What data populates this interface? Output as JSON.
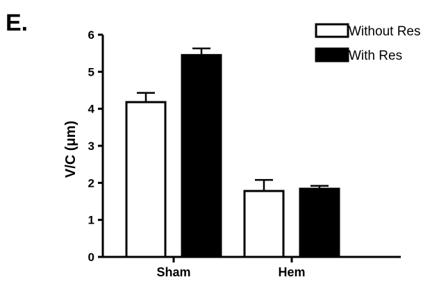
{
  "panel_label": "E.",
  "chart_data": {
    "type": "bar",
    "categories": [
      "Sham",
      "Hem"
    ],
    "series": [
      {
        "name": "Without Res",
        "values": [
          4.18,
          1.78
        ],
        "errors": [
          0.25,
          0.3
        ],
        "color": "#ffffff"
      },
      {
        "name": "With Res",
        "values": [
          5.45,
          1.84
        ],
        "errors": [
          0.18,
          0.08
        ],
        "color": "#000000"
      }
    ],
    "ylabel": "V/C (μm)",
    "xlabel": "",
    "ylim": [
      0,
      6
    ],
    "yticks": [
      "0",
      "1",
      "2",
      "3",
      "4",
      "5",
      "6"
    ],
    "legend_position": "top-right",
    "grid": false
  }
}
